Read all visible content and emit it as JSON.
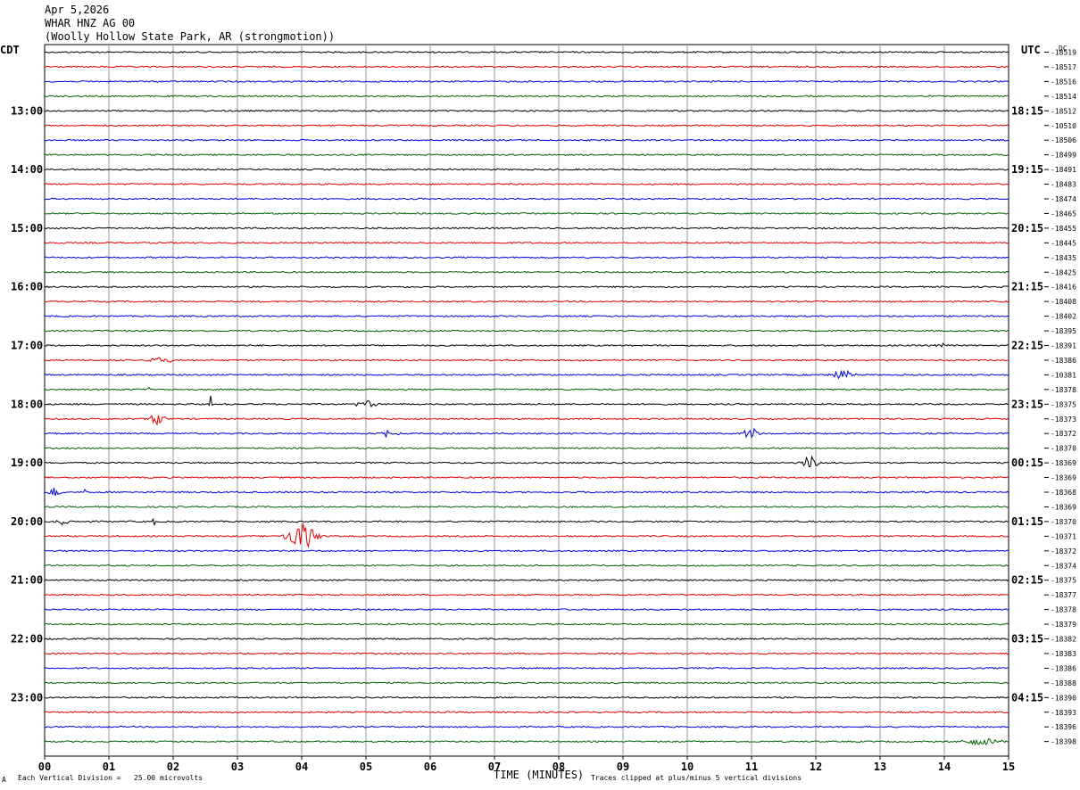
{
  "header": {
    "date": "Apr 5,2026",
    "station": "WHAR HNZ AG 00",
    "location": "(Woolly Hollow State Park, AR (strongmotion))"
  },
  "left_tz": "CDT",
  "right_tz": "UTC",
  "dc_label": "DC",
  "footer": {
    "scale_note": "Each Vertical Division =   25.00 microvolts",
    "clip_note": "Traces clipped at plus/minus 5 vertical divisions",
    "corner_mark": "A"
  },
  "colors": {
    "cycle": [
      "#000000",
      "#e00000",
      "#0000e0",
      "#006000"
    ],
    "grid": "#9a9a9a",
    "background": "#ffffff"
  },
  "chart_data": {
    "type": "line",
    "xlabel": "TIME (MINUTES)",
    "x_ticks": [
      "00",
      "01",
      "02",
      "03",
      "04",
      "05",
      "06",
      "07",
      "08",
      "09",
      "10",
      "11",
      "12",
      "13",
      "14",
      "15"
    ],
    "xlim": [
      0,
      15
    ],
    "rows_per_hour": 4,
    "left_hour_labels": [
      "13:00",
      "14:00",
      "15:00",
      "16:00",
      "17:00",
      "18:00",
      "19:00",
      "20:00",
      "21:00",
      "22:00",
      "23:00"
    ],
    "right_hour_labels": [
      "18:15",
      "19:15",
      "20:15",
      "21:15",
      "22:15",
      "23:15",
      "00:15",
      "01:15",
      "02:15",
      "03:15",
      "04:15"
    ],
    "dc_offsets": [
      -18519,
      -18517,
      -18516,
      -18514,
      -18512,
      -10510,
      -18506,
      -18499,
      -18491,
      -18483,
      -18474,
      -18465,
      -18455,
      -18445,
      -18435,
      -18425,
      -18416,
      -18408,
      -18402,
      -18395,
      -18391,
      -18386,
      -10381,
      -18378,
      -18375,
      -18373,
      -18372,
      -18370,
      -18369,
      -18369,
      -18368,
      -18369,
      -18370,
      -10371,
      -18372,
      -18374,
      -18375,
      -18377,
      -18378,
      -18379,
      -18382,
      -18383,
      -18386,
      -18388,
      -18390,
      -18393,
      -18396,
      -18398
    ],
    "events": [
      {
        "row": 20,
        "minute": 13.9,
        "amplitude": 4,
        "width": 0.25
      },
      {
        "row": 21,
        "minute": 1.8,
        "amplitude": 4,
        "width": 0.4
      },
      {
        "row": 22,
        "minute": 12.4,
        "amplitude": 6,
        "width": 0.35
      },
      {
        "row": 23,
        "minute": 1.62,
        "amplitude": 10,
        "width": 0.03
      },
      {
        "row": 24,
        "minute": 2.58,
        "amplitude": 12,
        "width": 0.03
      },
      {
        "row": 24,
        "minute": 5.0,
        "amplitude": 4,
        "width": 0.35
      },
      {
        "row": 25,
        "minute": 1.75,
        "amplitude": 7,
        "width": 0.25
      },
      {
        "row": 26,
        "minute": 5.35,
        "amplitude": 5,
        "width": 0.3
      },
      {
        "row": 26,
        "minute": 11.0,
        "amplitude": 6,
        "width": 0.3
      },
      {
        "row": 28,
        "minute": 11.9,
        "amplitude": 8,
        "width": 0.25
      },
      {
        "row": 30,
        "minute": 0.15,
        "amplitude": 5,
        "width": 0.3
      },
      {
        "row": 30,
        "minute": 0.65,
        "amplitude": 9,
        "width": 0.05
      },
      {
        "row": 32,
        "minute": 0.3,
        "amplitude": 4,
        "width": 0.3
      },
      {
        "row": 32,
        "minute": 1.7,
        "amplitude": 5,
        "width": 0.05
      },
      {
        "row": 32,
        "minute": 2.05,
        "amplitude": 4,
        "width": 0.05
      },
      {
        "row": 33,
        "minute": 4.0,
        "amplitude": 16,
        "width": 0.45
      },
      {
        "row": 47,
        "minute": 14.6,
        "amplitude": 4,
        "width": 0.7
      }
    ]
  }
}
